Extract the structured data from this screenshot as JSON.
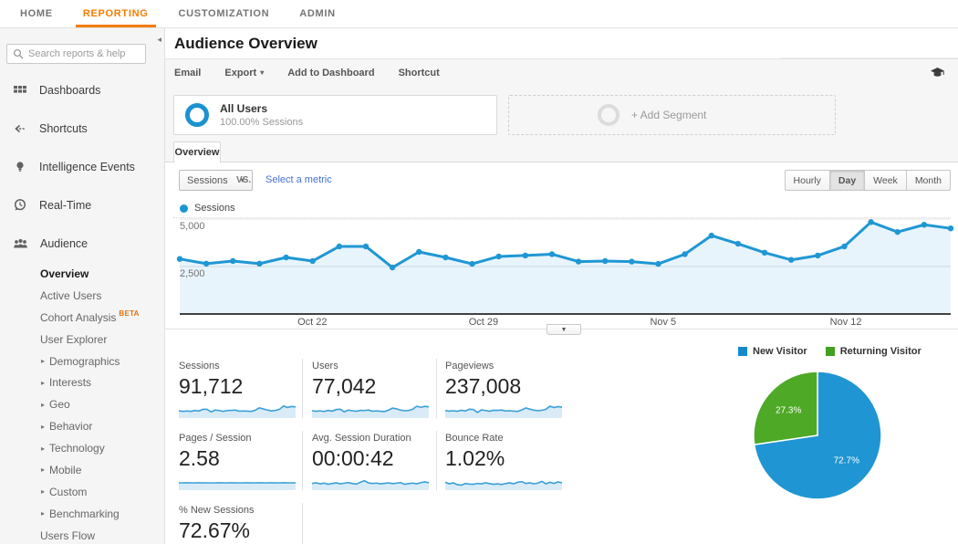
{
  "nav": {
    "items": [
      {
        "label": "HOME"
      },
      {
        "label": "REPORTING",
        "active": true
      },
      {
        "label": "CUSTOMIZATION"
      },
      {
        "label": "ADMIN"
      }
    ]
  },
  "sidebar": {
    "search_placeholder": "Search reports & help",
    "main_items": [
      {
        "label": "Dashboards",
        "icon": "dashboards-icon"
      },
      {
        "label": "Shortcuts",
        "icon": "shortcuts-icon"
      },
      {
        "label": "Intelligence Events",
        "icon": "intelligence-icon"
      },
      {
        "label": "Real-Time",
        "icon": "realtime-icon"
      },
      {
        "label": "Audience",
        "icon": "audience-icon"
      }
    ],
    "sub_items": [
      {
        "label": "Overview",
        "active": true
      },
      {
        "label": "Active Users"
      },
      {
        "label": "Cohort Analysis",
        "badge": "BETA"
      },
      {
        "label": "User Explorer"
      },
      {
        "label": "Demographics",
        "expandable": true
      },
      {
        "label": "Interests",
        "expandable": true
      },
      {
        "label": "Geo",
        "expandable": true
      },
      {
        "label": "Behavior",
        "expandable": true
      },
      {
        "label": "Technology",
        "expandable": true
      },
      {
        "label": "Mobile",
        "expandable": true
      },
      {
        "label": "Custom",
        "expandable": true
      },
      {
        "label": "Benchmarking",
        "expandable": true
      },
      {
        "label": "Users Flow"
      }
    ]
  },
  "header": {
    "title": "Audience Overview",
    "toolbar": {
      "email": "Email",
      "export": "Export",
      "add_to_dashboard": "Add to Dashboard",
      "shortcut": "Shortcut"
    }
  },
  "segments": {
    "all_users": {
      "title": "All Users",
      "subtitle": "100.00% Sessions"
    },
    "add_segment": "+ Add Segment"
  },
  "tab": {
    "label": "Overview"
  },
  "controls": {
    "metric_select": "Sessions",
    "vs": "VS.",
    "select_metric": "Select a metric",
    "granularity": [
      {
        "label": "Hourly"
      },
      {
        "label": "Day",
        "active": true
      },
      {
        "label": "Week"
      },
      {
        "label": "Month"
      }
    ]
  },
  "chart_legend": {
    "label": "Sessions"
  },
  "chart_data": [
    {
      "type": "line",
      "title": "Sessions",
      "xlabel": "",
      "ylabel": "Sessions",
      "ylim": [
        0,
        5300
      ],
      "grid": true,
      "series": [
        {
          "name": "Sessions",
          "values": [
            2900,
            2650,
            2790,
            2650,
            2980,
            2790,
            3560,
            3560,
            2450,
            3270,
            2980,
            2640,
            3030,
            3080,
            3150,
            2760,
            2790,
            2760,
            2640,
            3150,
            4130,
            3700,
            3230,
            2850,
            3080,
            3560,
            4840,
            4320,
            4700,
            4510
          ]
        }
      ],
      "x_ticks": [
        {
          "label": "Oct 22",
          "pos": 0.172
        },
        {
          "label": "Oct 29",
          "pos": 0.394
        },
        {
          "label": "Nov 5",
          "pos": 0.627
        },
        {
          "label": "Nov 12",
          "pos": 0.864
        }
      ],
      "y_ticks": [
        {
          "label": "2,500",
          "value": 2500
        },
        {
          "label": "5,000",
          "value": 5000
        }
      ]
    },
    {
      "type": "pie",
      "labels": [
        "New Visitor",
        "Returning Visitor"
      ],
      "values": [
        72.7,
        27.3
      ],
      "value_labels": [
        "72.7%",
        "27.3%"
      ],
      "colors": [
        "#2095d3",
        "#4ea926"
      ],
      "legend_position": "top"
    }
  ],
  "metrics": [
    {
      "label": "Sessions",
      "value": "91,712",
      "spark": [
        0.5,
        0.45,
        0.48,
        0.45,
        0.52,
        0.48,
        0.62,
        0.62,
        0.4,
        0.56,
        0.52,
        0.45,
        0.52,
        0.53,
        0.55,
        0.47,
        0.48,
        0.47,
        0.45,
        0.55,
        0.74,
        0.65,
        0.56,
        0.49,
        0.53,
        0.62,
        0.9,
        0.78,
        0.86,
        0.82
      ]
    },
    {
      "label": "Users",
      "value": "77,042",
      "spark": [
        0.5,
        0.46,
        0.49,
        0.44,
        0.53,
        0.47,
        0.6,
        0.63,
        0.41,
        0.55,
        0.5,
        0.46,
        0.53,
        0.52,
        0.56,
        0.46,
        0.49,
        0.46,
        0.44,
        0.56,
        0.72,
        0.66,
        0.55,
        0.5,
        0.52,
        0.63,
        0.88,
        0.79,
        0.87,
        0.83
      ]
    },
    {
      "label": "Pageviews",
      "value": "237,008",
      "spark": [
        0.52,
        0.47,
        0.5,
        0.46,
        0.54,
        0.48,
        0.63,
        0.6,
        0.35,
        0.57,
        0.52,
        0.46,
        0.54,
        0.53,
        0.56,
        0.48,
        0.5,
        0.47,
        0.45,
        0.57,
        0.73,
        0.64,
        0.55,
        0.5,
        0.54,
        0.62,
        0.88,
        0.77,
        0.85,
        0.8
      ]
    },
    {
      "label": "Pages / Session",
      "value": "2.58",
      "spark": [
        0.5,
        0.5,
        0.51,
        0.5,
        0.5,
        0.51,
        0.5,
        0.5,
        0.49,
        0.5,
        0.51,
        0.5,
        0.5,
        0.51,
        0.5,
        0.5,
        0.5,
        0.51,
        0.5,
        0.5,
        0.51,
        0.5,
        0.5,
        0.51,
        0.5,
        0.5,
        0.51,
        0.5,
        0.5,
        0.5
      ]
    },
    {
      "label": "Avg. Session Duration",
      "value": "00:00:42",
      "spark": [
        0.45,
        0.5,
        0.42,
        0.48,
        0.38,
        0.45,
        0.5,
        0.42,
        0.47,
        0.52,
        0.45,
        0.4,
        0.55,
        0.68,
        0.5,
        0.45,
        0.48,
        0.42,
        0.46,
        0.5,
        0.44,
        0.47,
        0.52,
        0.38,
        0.44,
        0.48,
        0.42,
        0.52,
        0.58,
        0.5
      ]
    },
    {
      "label": "Bounce Rate",
      "value": "1.02%",
      "spark": [
        0.55,
        0.42,
        0.5,
        0.35,
        0.3,
        0.45,
        0.4,
        0.38,
        0.45,
        0.42,
        0.5,
        0.44,
        0.38,
        0.42,
        0.36,
        0.44,
        0.5,
        0.42,
        0.55,
        0.6,
        0.45,
        0.5,
        0.42,
        0.48,
        0.62,
        0.42,
        0.55,
        0.45,
        0.58,
        0.5
      ]
    },
    {
      "label": "% New Sessions",
      "value": "72.67%",
      "spark": [
        0.5,
        0.5,
        0.51,
        0.5,
        0.52,
        0.55,
        0.68,
        0.56,
        0.51,
        0.5,
        0.5,
        0.51,
        0.5,
        0.5,
        0.51,
        0.5,
        0.5,
        0.5,
        0.51,
        0.5,
        0.5,
        0.51,
        0.5,
        0.5,
        0.5,
        0.51,
        0.5,
        0.5,
        0.51,
        0.5
      ]
    }
  ],
  "colors": {
    "accent_orange": "#f57c00",
    "chart_blue": "#1f97d4",
    "chart_area": "rgba(31,150,212,0.10)",
    "spark_line": "#39a0d8",
    "spark_area": "#d9ebf6",
    "pie_blue": "#2095d3",
    "pie_green": "#4ea926",
    "link_blue": "#4272d8"
  }
}
